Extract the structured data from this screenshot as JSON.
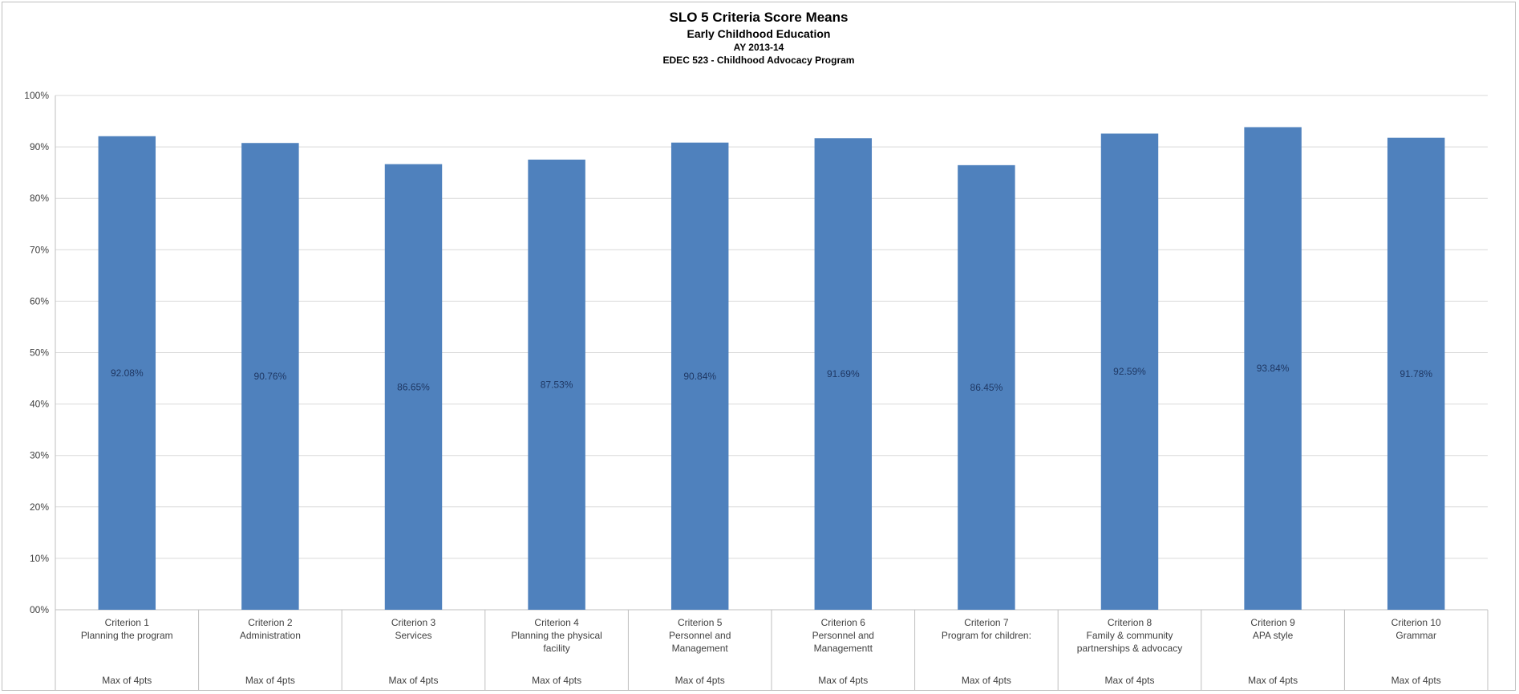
{
  "chart_data": {
    "type": "bar",
    "title": "SLO 5 Criteria Score Means",
    "subtitle_lines": [
      "Early Childhood Education",
      "AY 2013-14",
      "EDEC 523 - Childhood Advocacy Program"
    ],
    "xlabel": "",
    "ylabel": "",
    "ylim": [
      0,
      100
    ],
    "y_ticks": [
      "00%",
      "10%",
      "20%",
      "30%",
      "40%",
      "50%",
      "60%",
      "70%",
      "80%",
      "90%",
      "100%"
    ],
    "grid": true,
    "legend": "none",
    "bar_color": "#4f81bd",
    "categories": [
      {
        "lines": [
          "Criterion 1",
          "Planning the program"
        ],
        "footer": "Max of 4pts"
      },
      {
        "lines": [
          "Criterion 2",
          "Administration"
        ],
        "footer": "Max of 4pts"
      },
      {
        "lines": [
          "Criterion 3",
          "Services"
        ],
        "footer": "Max of 4pts"
      },
      {
        "lines": [
          "Criterion 4",
          "Planning the physical",
          "facility"
        ],
        "footer": "Max of 4pts"
      },
      {
        "lines": [
          "Criterion 5",
          "Personnel and",
          "Management"
        ],
        "footer": "Max of 4pts"
      },
      {
        "lines": [
          "Criterion 6",
          "Personnel and",
          "Managementt"
        ],
        "footer": "Max of 4pts"
      },
      {
        "lines": [
          "Criterion 7",
          "Program for children:"
        ],
        "footer": "Max of 4pts"
      },
      {
        "lines": [
          "Criterion 8",
          "Family & community",
          "partnerships & advocacy"
        ],
        "footer": "Max of 4pts"
      },
      {
        "lines": [
          "Criterion 9",
          "APA style"
        ],
        "footer": "Max of 4pts"
      },
      {
        "lines": [
          "Criterion 10",
          "Grammar"
        ],
        "footer": "Max of 4pts"
      }
    ],
    "values": [
      92.08,
      90.76,
      86.65,
      87.53,
      90.84,
      91.69,
      86.45,
      92.59,
      93.84,
      91.78
    ],
    "data_labels": [
      "92.08%",
      "90.76%",
      "86.65%",
      "87.53%",
      "90.84%",
      "91.69%",
      "86.45%",
      "92.59%",
      "93.84%",
      "91.78%"
    ]
  }
}
